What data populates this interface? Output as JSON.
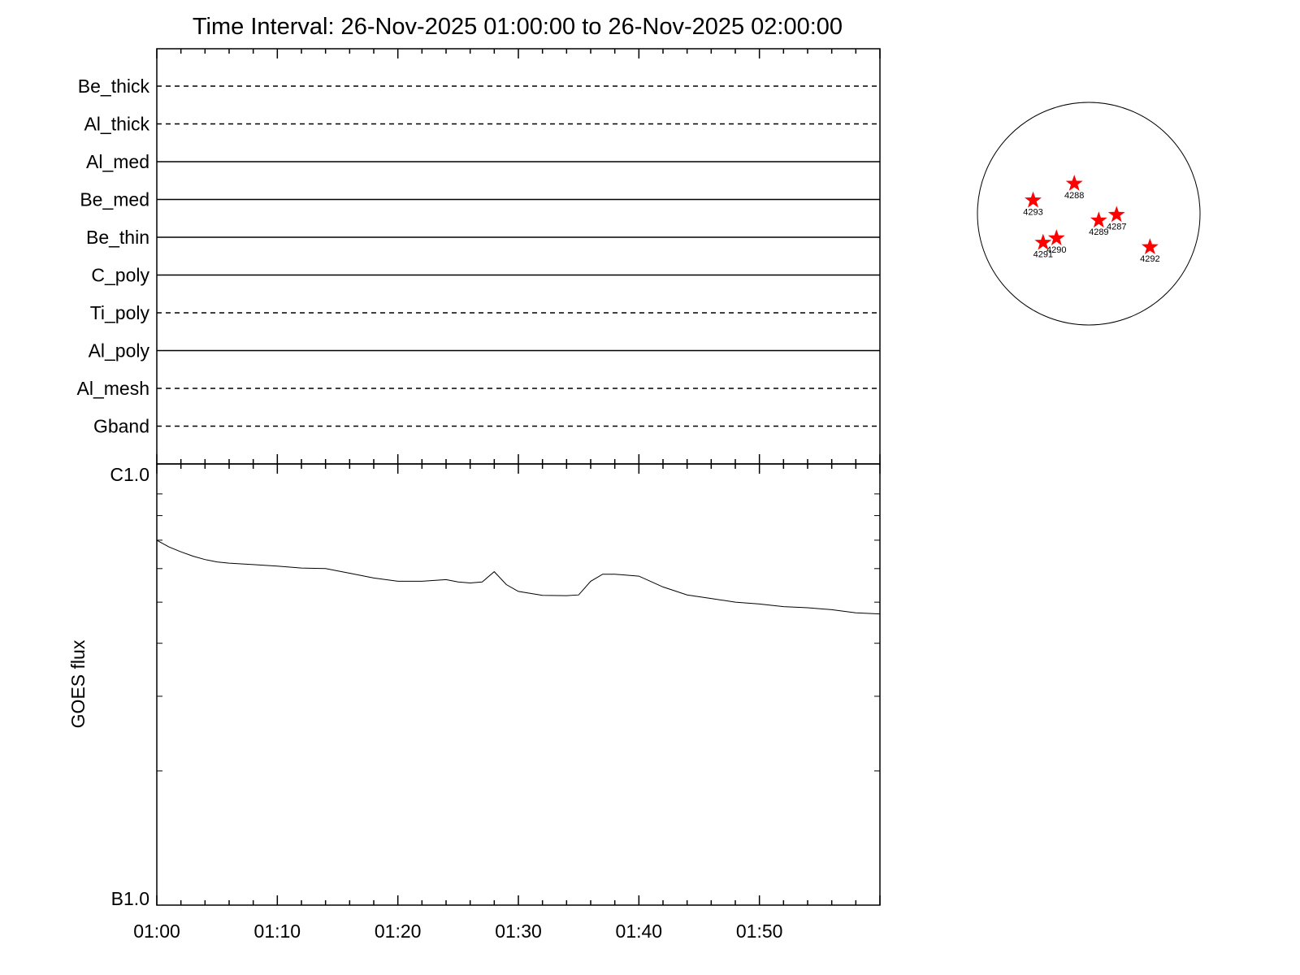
{
  "chart_data": [
    {
      "type": "line",
      "title": "Time Interval: 26-Nov-2025 01:00:00 to 26-Nov-2025 02:00:00",
      "panel": "filter-timeline",
      "x_range": [
        "01:00",
        "02:00"
      ],
      "filters": [
        {
          "name": "Be_thick",
          "style": "dashed"
        },
        {
          "name": "Al_thick",
          "style": "dashed"
        },
        {
          "name": "Al_med",
          "style": "solid"
        },
        {
          "name": "Be_med",
          "style": "solid"
        },
        {
          "name": "Be_thin",
          "style": "solid"
        },
        {
          "name": "C_poly",
          "style": "solid"
        },
        {
          "name": "Ti_poly",
          "style": "dashed"
        },
        {
          "name": "Al_poly",
          "style": "solid"
        },
        {
          "name": "Al_mesh",
          "style": "dashed"
        },
        {
          "name": "Gband",
          "style": "dashed"
        }
      ]
    },
    {
      "type": "line",
      "panel": "goes-flux",
      "ylabel": "GOES flux",
      "y_scale": "log",
      "ylim": [
        1e-07,
        1e-06
      ],
      "y_tick_labels": [
        {
          "label": "C1.0",
          "value": 1e-06
        },
        {
          "label": "B1.0",
          "value": 1e-07
        }
      ],
      "xlim": [
        0,
        60
      ],
      "x_tick_labels": [
        "01:00",
        "01:10",
        "01:20",
        "01:30",
        "01:40",
        "01:50"
      ],
      "x_tick_values": [
        0,
        10,
        20,
        30,
        40,
        50
      ],
      "series": [
        {
          "x": [
            0,
            1,
            2,
            3,
            4,
            5,
            6,
            8,
            10,
            12,
            14,
            16,
            18,
            20,
            22,
            24,
            25,
            26,
            27,
            28,
            29,
            30,
            32,
            34,
            35,
            36,
            37,
            38,
            40,
            42,
            44,
            46,
            48,
            50,
            52,
            54,
            56,
            58,
            60
          ],
          "y": [
            7e-07,
            6.75e-07,
            6.57e-07,
            6.42e-07,
            6.3e-07,
            6.22e-07,
            6.18e-07,
            6.13e-07,
            6.08e-07,
            6.02e-07,
            6e-07,
            5.85e-07,
            5.7e-07,
            5.6e-07,
            5.6e-07,
            5.65e-07,
            5.58e-07,
            5.55e-07,
            5.58e-07,
            5.9e-07,
            5.5e-07,
            5.3e-07,
            5.19e-07,
            5.18e-07,
            5.2e-07,
            5.6e-07,
            5.82e-07,
            5.82e-07,
            5.76e-07,
            5.43e-07,
            5.2e-07,
            5.1e-07,
            5e-07,
            4.95e-07,
            4.88e-07,
            4.85e-07,
            4.8e-07,
            4.72e-07,
            4.69e-07
          ]
        }
      ]
    },
    {
      "type": "scatter",
      "panel": "solar-disk",
      "points": [
        {
          "label": "4293",
          "x": -0.5,
          "y": 0.12
        },
        {
          "label": "4288",
          "x": -0.13,
          "y": 0.27
        },
        {
          "label": "4289",
          "x": 0.09,
          "y": -0.06
        },
        {
          "label": "4287",
          "x": 0.25,
          "y": -0.01
        },
        {
          "label": "4291",
          "x": -0.41,
          "y": -0.26
        },
        {
          "label": "4290",
          "x": -0.29,
          "y": -0.22
        },
        {
          "label": "4292",
          "x": 0.55,
          "y": -0.3
        }
      ],
      "marker_color": "#ff0000"
    }
  ]
}
